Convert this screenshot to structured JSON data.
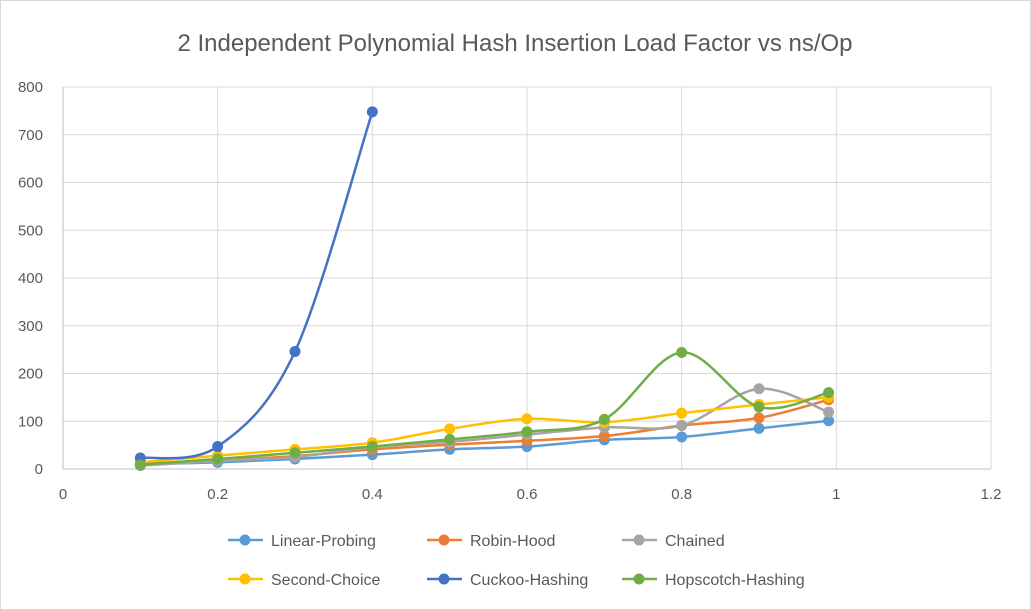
{
  "chart_data": {
    "type": "scatter",
    "title": "2 Independent  Polynomial Hash Insertion Load Factor vs ns/Op",
    "xlabel": "",
    "ylabel": "",
    "xlim": [
      0,
      1.2
    ],
    "ylim": [
      0,
      800
    ],
    "x_ticks": [
      "0",
      "0.2",
      "0.4",
      "0.6",
      "0.8",
      "1",
      "1.2"
    ],
    "y_ticks": [
      "0",
      "100",
      "200",
      "300",
      "400",
      "500",
      "600",
      "700",
      "800"
    ],
    "grid": true,
    "smoothed_lines": true,
    "legend_position": "bottom",
    "series": [
      {
        "name": "Linear-Probing",
        "color": "#5B9BD5",
        "x": [
          0.1,
          0.2,
          0.3,
          0.4,
          0.5,
          0.6,
          0.7,
          0.8,
          0.9,
          0.99
        ],
        "y": [
          10,
          14,
          21,
          30,
          41,
          47,
          61,
          67,
          85,
          101
        ]
      },
      {
        "name": "Robin-Hood",
        "color": "#ED7D31",
        "x": [
          0.1,
          0.2,
          0.3,
          0.4,
          0.5,
          0.6,
          0.7,
          0.8,
          0.9,
          0.99
        ],
        "y": [
          11,
          18,
          27,
          41,
          51,
          59,
          69,
          91,
          107,
          145
        ]
      },
      {
        "name": "Chained",
        "color": "#A5A5A5",
        "x": [
          0.1,
          0.2,
          0.3,
          0.4,
          0.5,
          0.6,
          0.7,
          0.8,
          0.9,
          0.99
        ],
        "y": [
          7,
          17,
          25,
          46,
          57,
          72,
          87,
          91,
          168,
          119
        ]
      },
      {
        "name": "Second-Choice",
        "color": "#FFC000",
        "x": [
          0.1,
          0.2,
          0.3,
          0.4,
          0.5,
          0.6,
          0.7,
          0.8,
          0.9,
          0.99
        ],
        "y": [
          14,
          28,
          41,
          55,
          84,
          105,
          98,
          117,
          135,
          150
        ]
      },
      {
        "name": "Cuckoo-Hashing",
        "color": "#4472C4",
        "x": [
          0.1,
          0.2,
          0.3,
          0.4
        ],
        "y": [
          23,
          47,
          246,
          748
        ]
      },
      {
        "name": "Hopscotch-Hashing",
        "color": "#70AD47",
        "x": [
          0.1,
          0.2,
          0.3,
          0.4,
          0.5,
          0.6,
          0.7,
          0.8,
          0.9,
          0.99
        ],
        "y": [
          9,
          21,
          34,
          47,
          62,
          78,
          104,
          244,
          130,
          160
        ]
      }
    ]
  }
}
